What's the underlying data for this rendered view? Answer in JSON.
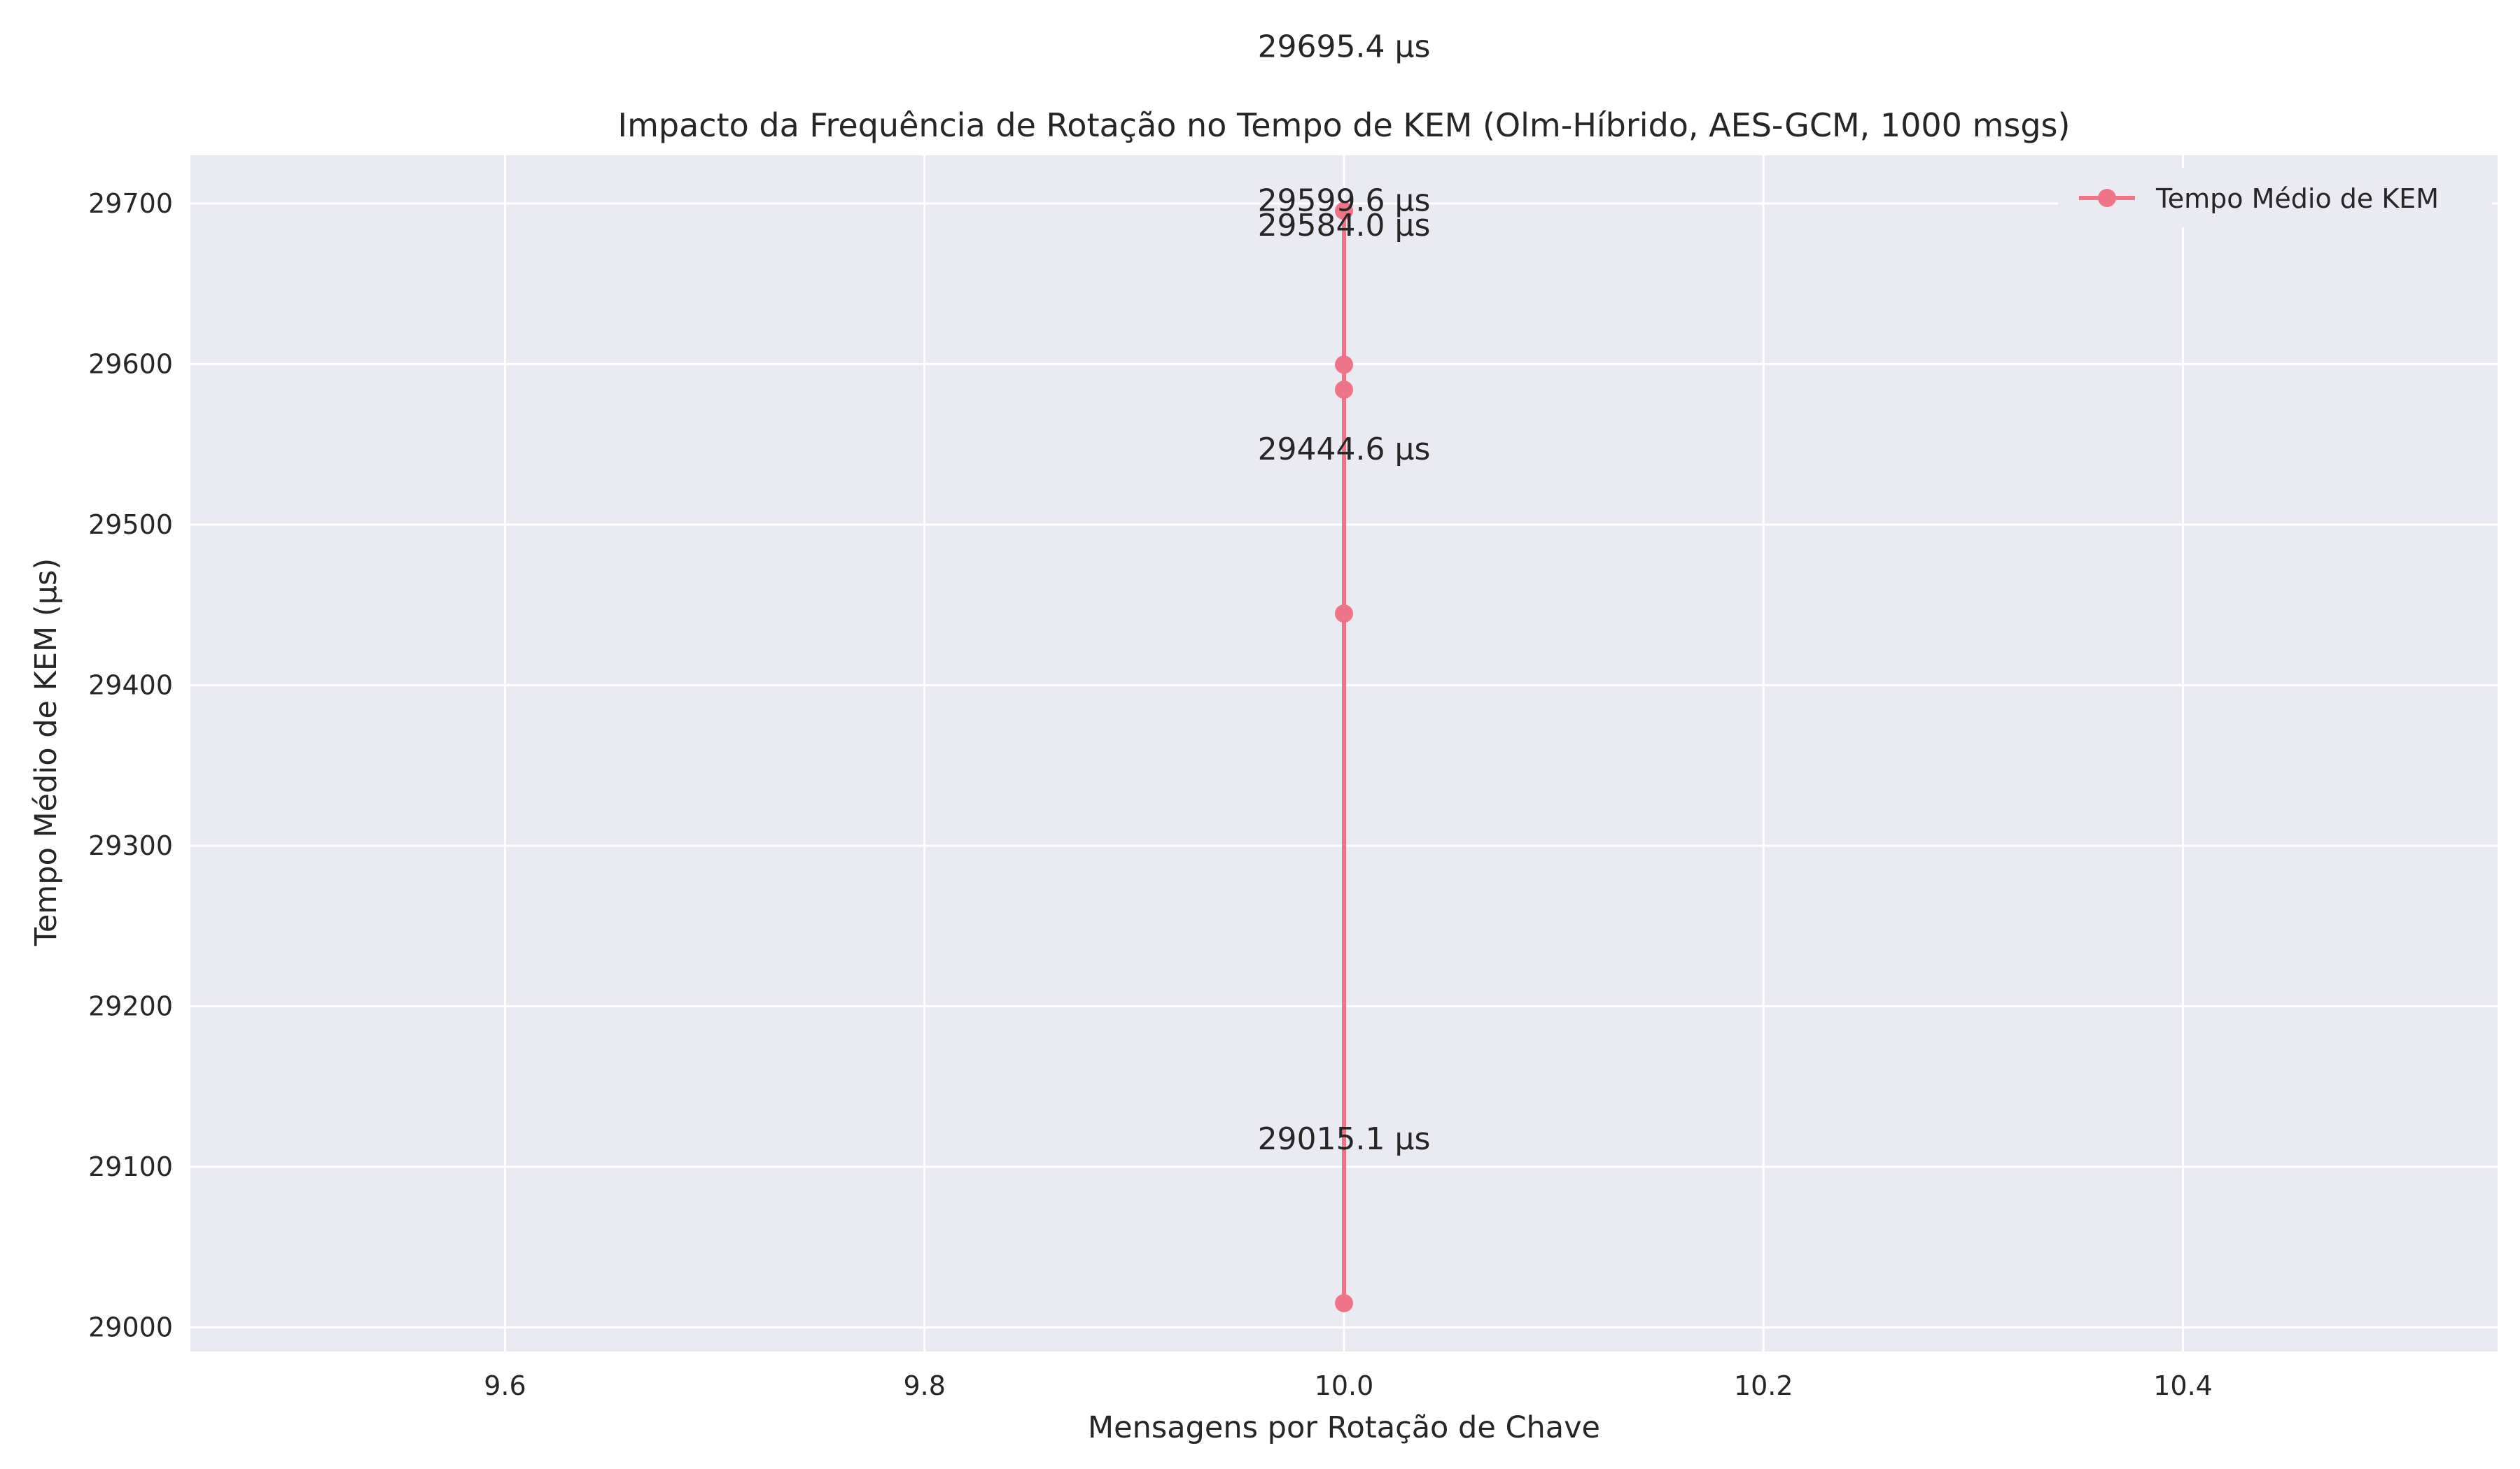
{
  "chart_data": {
    "type": "line",
    "title": "Impacto da Frequência de Rotação no Tempo de KEM (Olm-Híbrido, AES-GCM, 1000 msgs)",
    "xlabel": "Mensagens por Rotação de Chave",
    "ylabel": "Tempo Médio de KEM (µs)",
    "xlim": [
      9.45,
      10.55
    ],
    "ylim": [
      28985,
      29730
    ],
    "x_ticks": [
      9.6,
      9.8,
      10.0,
      10.2,
      10.4
    ],
    "x_tick_labels": [
      "9.6",
      "9.8",
      "10.0",
      "10.2",
      "10.4"
    ],
    "y_ticks": [
      29000,
      29100,
      29200,
      29300,
      29400,
      29500,
      29600,
      29700
    ],
    "y_tick_labels": [
      "29000",
      "29100",
      "29200",
      "29300",
      "29400",
      "29500",
      "29600",
      "29700"
    ],
    "grid": true,
    "legend_position": "top-right",
    "series": [
      {
        "name": "Tempo Médio de KEM",
        "color": "#f07488",
        "x": [
          10,
          10,
          10,
          10,
          10
        ],
        "y": [
          29015.1,
          29444.6,
          29584.0,
          29599.6,
          29695.4
        ],
        "labels": [
          "29015.1 µs",
          "29444.6 µs",
          "29584.0 µs",
          "29599.6 µs",
          "29695.4 µs"
        ]
      }
    ],
    "background_color": "#eaeaf2",
    "grid_color": "#ffffff"
  }
}
